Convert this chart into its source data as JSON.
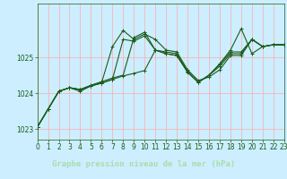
{
  "title": "Graphe pression niveau de la mer (hPa)",
  "plot_bg_color": "#cceeff",
  "fig_bg_color": "#cceeff",
  "label_bg_color": "#2d6a2d",
  "label_text_color": "#aaddaa",
  "grid_color": "#ffaaaa",
  "line_color": "#1a5c1a",
  "xlim": [
    0,
    23
  ],
  "ylim": [
    1022.7,
    1026.5
  ],
  "yticks": [
    1023,
    1024,
    1025
  ],
  "xticks": [
    0,
    1,
    2,
    3,
    4,
    5,
    6,
    7,
    8,
    9,
    10,
    11,
    12,
    13,
    14,
    15,
    16,
    17,
    18,
    19,
    20,
    21,
    22,
    23
  ],
  "lines": [
    [
      1023.05,
      1023.55,
      1024.05,
      1024.15,
      1024.05,
      1024.2,
      1024.3,
      1025.3,
      1025.75,
      1025.5,
      1025.65,
      1025.5,
      1025.2,
      1025.15,
      1024.65,
      1024.35,
      1024.45,
      1024.65,
      1025.05,
      1025.05,
      1025.5,
      1025.3,
      1025.35,
      1025.35
    ],
    [
      1023.05,
      1023.55,
      1024.05,
      1024.15,
      1024.1,
      1024.22,
      1024.32,
      1024.42,
      1024.5,
      1025.55,
      1025.7,
      1025.2,
      1025.15,
      1025.1,
      1024.6,
      1024.3,
      1024.5,
      1024.75,
      1025.1,
      1025.1,
      1025.5,
      1025.3,
      1025.35,
      1025.35
    ],
    [
      1023.05,
      1023.55,
      1024.05,
      1024.15,
      1024.1,
      1024.2,
      1024.28,
      1024.38,
      1024.48,
      1024.55,
      1024.63,
      1025.2,
      1025.1,
      1025.05,
      1024.6,
      1024.3,
      1024.5,
      1024.8,
      1025.15,
      1025.15,
      1025.5,
      1025.3,
      1025.35,
      1025.35
    ],
    [
      1023.05,
      1023.55,
      1024.05,
      1024.15,
      1024.1,
      1024.2,
      1024.28,
      1024.38,
      1025.5,
      1025.45,
      1025.6,
      1025.2,
      1025.1,
      1025.05,
      1024.58,
      1024.3,
      1024.5,
      1024.82,
      1025.2,
      1025.8,
      1025.1,
      1025.3,
      1025.35,
      1025.35
    ]
  ],
  "marker": "+",
  "markersize": 3,
  "linewidth": 0.8,
  "tick_fontsize": 5.5,
  "label_fontsize": 6.5
}
